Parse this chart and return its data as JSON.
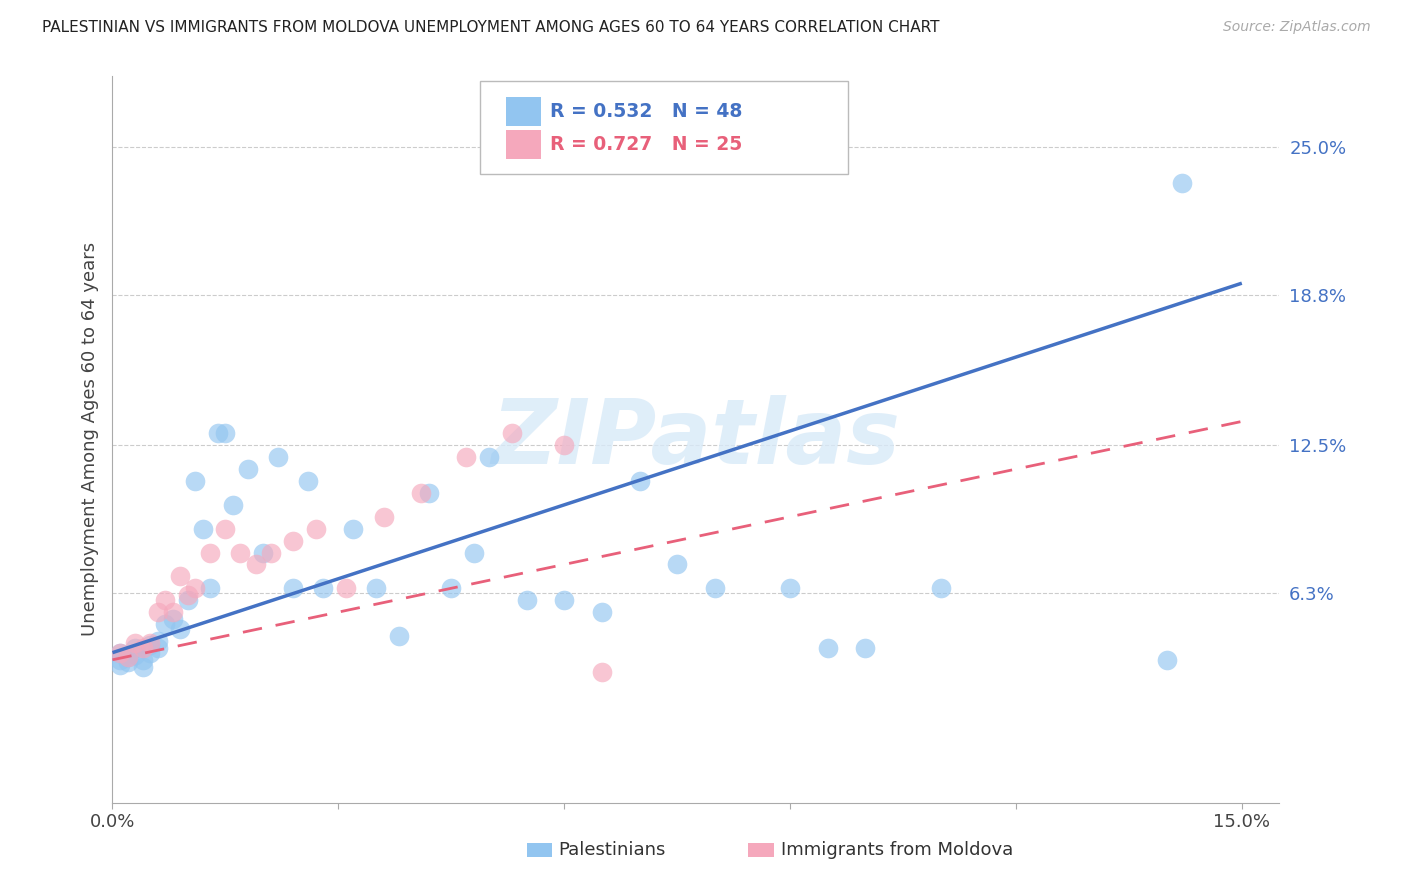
{
  "title": "PALESTINIAN VS IMMIGRANTS FROM MOLDOVA UNEMPLOYMENT AMONG AGES 60 TO 64 YEARS CORRELATION CHART",
  "source": "Source: ZipAtlas.com",
  "ylabel": "Unemployment Among Ages 60 to 64 years",
  "xlim": [
    0.0,
    0.155
  ],
  "ylim": [
    -0.025,
    0.28
  ],
  "yticks": [
    0.063,
    0.125,
    0.188,
    0.25
  ],
  "ytick_labels": [
    "6.3%",
    "12.5%",
    "18.8%",
    "25.0%"
  ],
  "xtick_vals": [
    0.0,
    0.03,
    0.06,
    0.09,
    0.12,
    0.15
  ],
  "xtick_labels": [
    "0.0%",
    "",
    "",
    "",
    "",
    "15.0%"
  ],
  "blue_color": "#92C5F0",
  "pink_color": "#F5A8BC",
  "blue_line_color": "#4472C4",
  "pink_line_color": "#E8607A",
  "legend_blue_r": "R = 0.532",
  "legend_blue_n": "N = 48",
  "legend_pink_r": "R = 0.727",
  "legend_pink_n": "N = 25",
  "legend_blue_label": "Palestinians",
  "legend_pink_label": "Immigrants from Moldova",
  "watermark": "ZIPatlas",
  "blue_line_x0": 0.0,
  "blue_line_y0": 0.038,
  "blue_line_x1": 0.15,
  "blue_line_y1": 0.193,
  "pink_line_x0": 0.0,
  "pink_line_y0": 0.035,
  "pink_line_x1": 0.15,
  "pink_line_y1": 0.135,
  "palestinians_x": [
    0.001,
    0.001,
    0.001,
    0.002,
    0.002,
    0.003,
    0.003,
    0.004,
    0.004,
    0.005,
    0.005,
    0.006,
    0.006,
    0.007,
    0.008,
    0.009,
    0.01,
    0.011,
    0.012,
    0.013,
    0.014,
    0.015,
    0.016,
    0.018,
    0.02,
    0.022,
    0.024,
    0.026,
    0.028,
    0.032,
    0.035,
    0.038,
    0.042,
    0.045,
    0.048,
    0.05,
    0.055,
    0.06,
    0.065,
    0.07,
    0.075,
    0.08,
    0.09,
    0.095,
    0.1,
    0.11,
    0.14,
    0.142
  ],
  "palestinians_y": [
    0.038,
    0.035,
    0.033,
    0.034,
    0.036,
    0.04,
    0.037,
    0.032,
    0.035,
    0.041,
    0.038,
    0.04,
    0.043,
    0.05,
    0.052,
    0.048,
    0.06,
    0.11,
    0.09,
    0.065,
    0.13,
    0.13,
    0.1,
    0.115,
    0.08,
    0.12,
    0.065,
    0.11,
    0.065,
    0.09,
    0.065,
    0.045,
    0.105,
    0.065,
    0.08,
    0.12,
    0.06,
    0.06,
    0.055,
    0.11,
    0.075,
    0.065,
    0.065,
    0.04,
    0.04,
    0.065,
    0.035,
    0.235
  ],
  "moldova_x": [
    0.001,
    0.002,
    0.003,
    0.004,
    0.005,
    0.006,
    0.007,
    0.008,
    0.009,
    0.01,
    0.011,
    0.013,
    0.015,
    0.017,
    0.019,
    0.021,
    0.024,
    0.027,
    0.031,
    0.036,
    0.041,
    0.047,
    0.053,
    0.06,
    0.065
  ],
  "moldova_y": [
    0.038,
    0.036,
    0.042,
    0.04,
    0.042,
    0.055,
    0.06,
    0.055,
    0.07,
    0.062,
    0.065,
    0.08,
    0.09,
    0.08,
    0.075,
    0.08,
    0.085,
    0.09,
    0.065,
    0.095,
    0.105,
    0.12,
    0.13,
    0.125,
    0.03
  ]
}
